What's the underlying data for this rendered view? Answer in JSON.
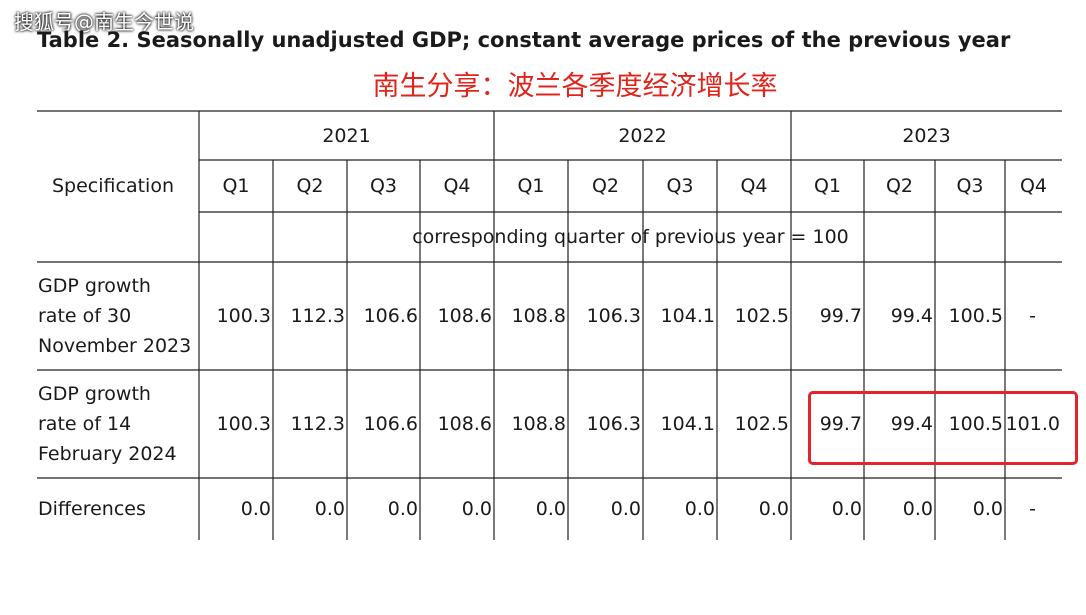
{
  "watermark": "搜狐号@南生今世说",
  "title": "Table 2. Seasonally unadjusted GDP; constant average prices of the previous year",
  "subtitle": "南生分享：波兰各季度经济增长率",
  "table": {
    "row_header": "Specification",
    "years": [
      "2021",
      "2022",
      "2023"
    ],
    "quarters": [
      "Q1",
      "Q2",
      "Q3",
      "Q4",
      "Q1",
      "Q2",
      "Q3",
      "Q4",
      "Q1",
      "Q2",
      "Q3",
      "Q4"
    ],
    "unit_note": "corresponding quarter of previous year = 100",
    "rows": [
      {
        "label_lines": [
          "GDP growth",
          "rate of  30",
          "November 2023"
        ],
        "values": [
          "100.3",
          "112.3",
          "106.6",
          "108.6",
          "108.8",
          "106.3",
          "104.1",
          "102.5",
          "99.7",
          "99.4",
          "100.5",
          "-"
        ]
      },
      {
        "label_lines": [
          "GDP growth",
          "rate of  14",
          "February 2024"
        ],
        "values": [
          "100.3",
          "112.3",
          "106.6",
          "108.6",
          "108.8",
          "106.3",
          "104.1",
          "102.5",
          "99.7",
          "99.4",
          "100.5",
          "101.0"
        ]
      },
      {
        "label_lines": [
          "Differences"
        ],
        "values": [
          "0.0",
          "0.0",
          "0.0",
          "0.0",
          "0.0",
          "0.0",
          "0.0",
          "0.0",
          "0.0",
          "0.0",
          "0.0",
          "-"
        ]
      }
    ]
  }
}
